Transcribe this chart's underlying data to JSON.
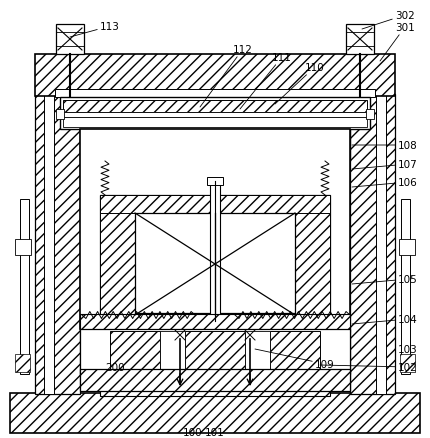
{
  "bg": "#ffffff",
  "lc": "#000000",
  "fw": 4.3,
  "fh": 4.39,
  "dpi": 100,
  "fs": 7.5
}
